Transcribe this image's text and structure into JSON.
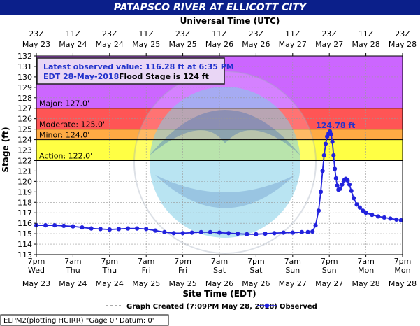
{
  "page_title": "PATAPSCO RIVER AT ELLICOTT CITY",
  "chart_data": {
    "type": "line",
    "title": "PATAPSCO RIVER AT ELLICOTT CITY",
    "top_axis_label": "Universal Time (UTC)",
    "xlabel": "Site Time (EDT)",
    "ylabel": "Stage (ft)",
    "ylim": [
      113,
      132
    ],
    "y_ticks": [
      113,
      114,
      115,
      116,
      117,
      118,
      119,
      120,
      121,
      122,
      123,
      124,
      125,
      126,
      127,
      128,
      129,
      130,
      131,
      132
    ],
    "grid": true,
    "x_units": "hours from May 23 7pm EDT",
    "x_range": [
      0,
      120
    ],
    "x_ticks": [
      {
        "x": 0,
        "bottom_time": "7pm",
        "bottom_day": "Wed",
        "bottom_date": "May 23",
        "top_time": "23Z",
        "top_date": "May 23"
      },
      {
        "x": 12,
        "bottom_time": "7am",
        "bottom_day": "Thu",
        "bottom_date": "May 24",
        "top_time": "11Z",
        "top_date": "May 24"
      },
      {
        "x": 24,
        "bottom_time": "7pm",
        "bottom_day": "Thu",
        "bottom_date": "May 24",
        "top_time": "23Z",
        "top_date": "May 24"
      },
      {
        "x": 36,
        "bottom_time": "7am",
        "bottom_day": "Fri",
        "bottom_date": "May 25",
        "top_time": "11Z",
        "top_date": "May 25"
      },
      {
        "x": 48,
        "bottom_time": "7pm",
        "bottom_day": "Fri",
        "bottom_date": "May 25",
        "top_time": "23Z",
        "top_date": "May 25"
      },
      {
        "x": 60,
        "bottom_time": "7am",
        "bottom_day": "Sat",
        "bottom_date": "May 26",
        "top_time": "11Z",
        "top_date": "May 26"
      },
      {
        "x": 72,
        "bottom_time": "7pm",
        "bottom_day": "Sat",
        "bottom_date": "May 26",
        "top_time": "23Z",
        "top_date": "May 26"
      },
      {
        "x": 84,
        "bottom_time": "7am",
        "bottom_day": "Sun",
        "bottom_date": "May 27",
        "top_time": "11Z",
        "top_date": "May 27"
      },
      {
        "x": 96,
        "bottom_time": "7pm",
        "bottom_day": "Sun",
        "bottom_date": "May 27",
        "top_time": "23Z",
        "top_date": "May 27"
      },
      {
        "x": 108,
        "bottom_time": "7am",
        "bottom_day": "Mon",
        "bottom_date": "May 28",
        "top_time": "11Z",
        "top_date": "May 28"
      },
      {
        "x": 120,
        "bottom_time": "7pm",
        "bottom_day": "Mon",
        "bottom_date": "May 28",
        "top_time": "23Z",
        "top_date": "May 28"
      }
    ],
    "flood_categories": [
      {
        "label": "Major: 127.0'",
        "from": 127,
        "to": 132,
        "color": "#cc66ff"
      },
      {
        "label": "Moderate: 125.0'",
        "from": 125,
        "to": 127,
        "color": "#ff5555"
      },
      {
        "label": "Minor: 124.0'",
        "from": 124,
        "to": 125,
        "color": "#ffaa44"
      },
      {
        "label": "Action: 122.0'",
        "from": 122,
        "to": 124,
        "color": "#ffff44"
      }
    ],
    "peak_label": "124.78 ft",
    "peak": {
      "x": 96.2,
      "y": 124.78
    },
    "latest_box": {
      "line1": "Latest observed value: 116.28 ft at 6:35 PM",
      "line2_a": "EDT 28-May-2018.",
      "line2_b": "Flood Stage is 124 ft"
    },
    "legend_graph_created": "Graph Created (7:09PM May 28, 2018)",
    "legend_observed": "Observed",
    "footer_note": "ELPM2(plotting HGIRR) \"Gage 0\" Datum: 0'",
    "watermark_text": "NATIONAL OCEANIC AND ATMOSPHERIC ADMINISTRATION · U.S. DEPARTMENT OF COMMERCE · NOAA",
    "series": [
      {
        "name": "Observed",
        "color": "#2222dd",
        "points": [
          [
            0,
            115.8
          ],
          [
            3,
            115.8
          ],
          [
            6,
            115.8
          ],
          [
            9,
            115.75
          ],
          [
            12,
            115.7
          ],
          [
            15,
            115.6
          ],
          [
            18,
            115.5
          ],
          [
            21,
            115.45
          ],
          [
            24,
            115.4
          ],
          [
            27,
            115.45
          ],
          [
            30,
            115.5
          ],
          [
            33,
            115.5
          ],
          [
            36,
            115.45
          ],
          [
            39,
            115.3
          ],
          [
            42,
            115.15
          ],
          [
            45,
            115.05
          ],
          [
            48,
            115.05
          ],
          [
            51,
            115.1
          ],
          [
            54,
            115.15
          ],
          [
            57,
            115.15
          ],
          [
            60,
            115.1
          ],
          [
            63,
            115.05
          ],
          [
            66,
            115.0
          ],
          [
            69,
            114.95
          ],
          [
            72,
            114.95
          ],
          [
            75,
            115.0
          ],
          [
            78,
            115.05
          ],
          [
            81,
            115.1
          ],
          [
            84,
            115.1
          ],
          [
            87,
            115.15
          ],
          [
            89,
            115.15
          ],
          [
            90.5,
            115.2
          ],
          [
            91.5,
            115.8
          ],
          [
            92.5,
            117.2
          ],
          [
            93.2,
            119.0
          ],
          [
            93.8,
            121.0
          ],
          [
            94.3,
            122.5
          ],
          [
            94.8,
            123.6
          ],
          [
            95.3,
            124.3
          ],
          [
            95.8,
            124.6
          ],
          [
            96.2,
            124.78
          ],
          [
            96.6,
            124.5
          ],
          [
            97.0,
            123.8
          ],
          [
            97.4,
            122.5
          ],
          [
            97.8,
            121.2
          ],
          [
            98.2,
            120.3
          ],
          [
            98.6,
            119.6
          ],
          [
            99.0,
            119.2
          ],
          [
            99.6,
            119.3
          ],
          [
            100.2,
            119.7
          ],
          [
            100.8,
            120.1
          ],
          [
            101.4,
            120.25
          ],
          [
            102.0,
            120.1
          ],
          [
            102.6,
            119.7
          ],
          [
            103.2,
            119.1
          ],
          [
            104.0,
            118.4
          ],
          [
            105.0,
            117.8
          ],
          [
            106.0,
            117.5
          ],
          [
            107.0,
            117.2
          ],
          [
            108.0,
            117.0
          ],
          [
            110.0,
            116.8
          ],
          [
            112.0,
            116.65
          ],
          [
            114.0,
            116.55
          ],
          [
            116.0,
            116.45
          ],
          [
            118.0,
            116.35
          ],
          [
            119.5,
            116.28
          ]
        ]
      }
    ]
  }
}
